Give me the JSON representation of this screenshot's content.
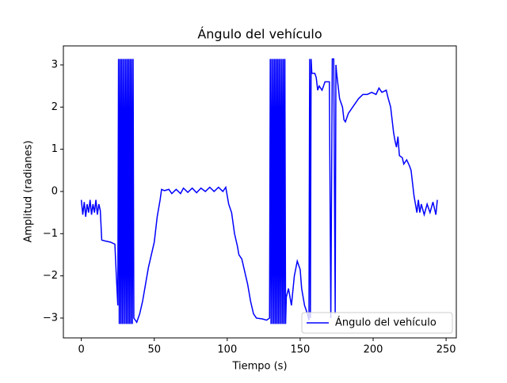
{
  "chart_data": {
    "type": "line",
    "title": "Ángulo del vehículo",
    "xlabel": "Tiempo (s)",
    "ylabel": "Amplitud (radianes)",
    "x": [
      0,
      1,
      2,
      3,
      4,
      5,
      6,
      7,
      8,
      9,
      10,
      11,
      12,
      13,
      14,
      16,
      20,
      23,
      24,
      25,
      25.5,
      26,
      26.5,
      27,
      27.5,
      28,
      28.5,
      29,
      29.5,
      30,
      30.5,
      31,
      31.5,
      32,
      32.5,
      33,
      33.5,
      34,
      34.5,
      35,
      35.5,
      36,
      38,
      40,
      42,
      44,
      46,
      48,
      50,
      52,
      54,
      55,
      57,
      60,
      62,
      65,
      68,
      70,
      73,
      76,
      79,
      82,
      85,
      88,
      91,
      94,
      97,
      99,
      101,
      103,
      105,
      107,
      108,
      110,
      112,
      114,
      116,
      118,
      120,
      124,
      127,
      129,
      129.5,
      130,
      130.5,
      131,
      131.5,
      132,
      132.5,
      133,
      133.5,
      134,
      134.5,
      135,
      135.5,
      136,
      136.5,
      137,
      137.5,
      138,
      138.5,
      139,
      139.5,
      140,
      140.5,
      142,
      144,
      146,
      148,
      150,
      151,
      153,
      155,
      156,
      156.5,
      157,
      157.5,
      158,
      160,
      161,
      162,
      163,
      165,
      167,
      170,
      171,
      172,
      173,
      174,
      174.5,
      175,
      177,
      179,
      180,
      181,
      183,
      186,
      190,
      193,
      196,
      199,
      202,
      204,
      206,
      209,
      210,
      212,
      213,
      214,
      215,
      216,
      217,
      218,
      220,
      221,
      223,
      225,
      226,
      228,
      229,
      230,
      231,
      232,
      233,
      235,
      237,
      239,
      241,
      243,
      244
    ],
    "series": [
      {
        "name": "Ángulo del vehículo",
        "color": "#0000ff",
        "values": [
          -0.2,
          -0.55,
          -0.25,
          -0.6,
          -0.3,
          -0.5,
          -0.2,
          -0.55,
          -0.3,
          -0.5,
          -0.2,
          -0.55,
          -0.3,
          -0.45,
          -1.15,
          -1.17,
          -1.2,
          -1.25,
          -2.0,
          -2.7,
          3.14,
          -3.14,
          3.14,
          -3.14,
          3.14,
          -3.14,
          3.14,
          -3.14,
          3.14,
          -3.14,
          3.14,
          -3.14,
          3.14,
          -3.14,
          3.14,
          -3.14,
          3.14,
          -3.14,
          3.14,
          -3.14,
          3.14,
          -3.0,
          -3.1,
          -2.9,
          -2.6,
          -2.2,
          -1.8,
          -1.5,
          -1.2,
          -0.6,
          -0.2,
          0.05,
          0.02,
          0.05,
          -0.05,
          0.05,
          -0.05,
          0.08,
          -0.02,
          0.08,
          -0.03,
          0.08,
          0.0,
          0.1,
          0.0,
          0.1,
          0.0,
          0.1,
          -0.3,
          -0.5,
          -1.0,
          -1.3,
          -1.5,
          -1.6,
          -1.9,
          -2.2,
          -2.6,
          -2.9,
          -3.0,
          -3.02,
          -3.05,
          -3.0,
          3.14,
          -3.14,
          3.14,
          -3.14,
          3.14,
          -3.14,
          3.14,
          -3.14,
          3.14,
          -3.14,
          3.14,
          -3.14,
          3.14,
          -3.14,
          3.14,
          -3.14,
          3.14,
          -3.14,
          3.14,
          -3.14,
          3.14,
          -3.14,
          -2.5,
          -2.3,
          -2.7,
          -2.0,
          -1.65,
          -1.85,
          -2.3,
          -2.7,
          -2.9,
          -3.05,
          3.14,
          -3.0,
          3.14,
          2.8,
          2.8,
          2.7,
          2.4,
          2.5,
          2.4,
          2.6,
          2.6,
          -3.0,
          3.14,
          3.14,
          -2.9,
          3.0,
          2.8,
          2.2,
          2.0,
          1.7,
          1.65,
          1.85,
          2.0,
          2.2,
          2.3,
          2.3,
          2.35,
          2.3,
          2.45,
          2.35,
          2.4,
          2.25,
          2.0,
          1.7,
          1.4,
          1.2,
          1.05,
          1.3,
          0.85,
          0.8,
          0.65,
          0.75,
          0.6,
          0.5,
          -0.1,
          -0.3,
          -0.5,
          -0.2,
          -0.5,
          -0.3,
          -0.55,
          -0.3,
          -0.5,
          -0.25,
          -0.55,
          -0.2
        ]
      }
    ],
    "xlim": [
      -12.3,
      257
    ],
    "ylim": [
      -3.47,
      3.45
    ],
    "xticks": [
      0,
      50,
      100,
      150,
      200,
      250
    ],
    "yticks": [
      {
        "value": -3,
        "label": "−3"
      },
      {
        "value": -2,
        "label": "−2"
      },
      {
        "value": -1,
        "label": "−1"
      },
      0,
      1,
      2,
      3
    ],
    "legend": "lower right"
  }
}
